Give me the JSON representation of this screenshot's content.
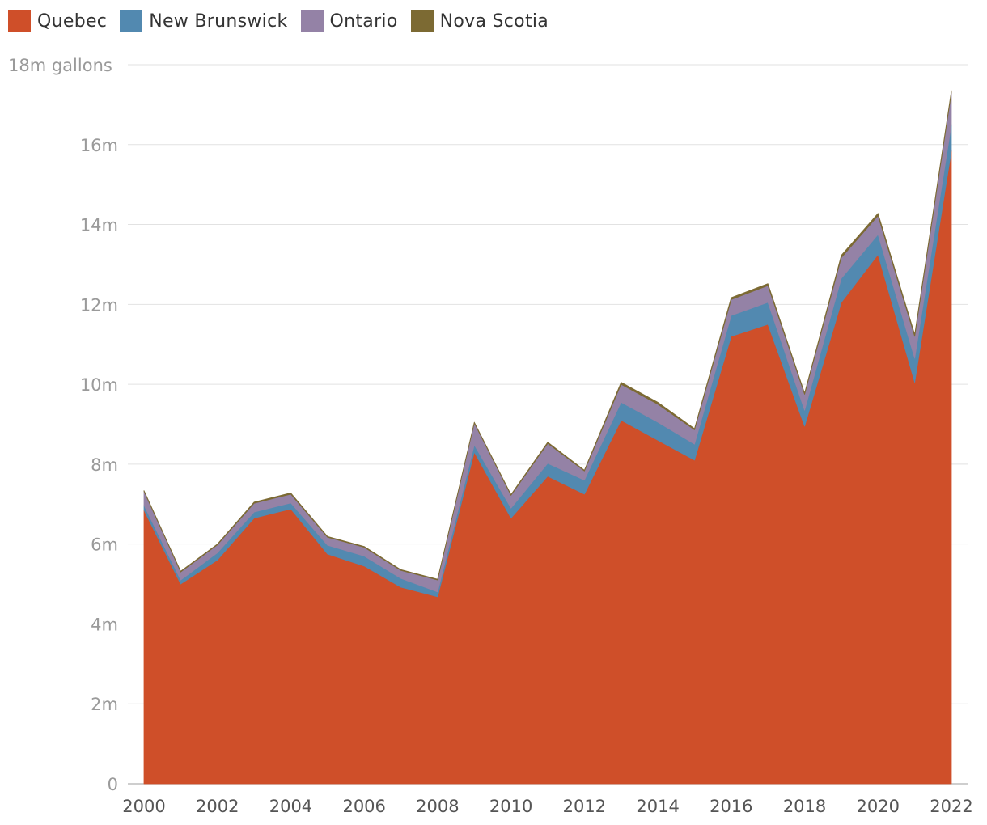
{
  "chart_data": {
    "type": "area",
    "stacked": true,
    "unit_label": "18m gallons",
    "x": [
      2000,
      2001,
      2002,
      2003,
      2004,
      2005,
      2006,
      2007,
      2008,
      2009,
      2010,
      2011,
      2012,
      2013,
      2014,
      2015,
      2016,
      2017,
      2018,
      2019,
      2020,
      2021,
      2022
    ],
    "series": [
      {
        "name": "Quebec",
        "color": "#cf4f29",
        "values": [
          6.85,
          5.0,
          5.6,
          6.65,
          6.88,
          5.75,
          5.45,
          4.92,
          4.68,
          8.3,
          6.65,
          7.7,
          7.25,
          9.1,
          8.6,
          8.1,
          11.2,
          11.5,
          8.95,
          12.05,
          13.25,
          10.05,
          15.85
        ]
      },
      {
        "name": "New Brunswick",
        "color": "#5289b0",
        "values": [
          0.12,
          0.1,
          0.18,
          0.15,
          0.15,
          0.22,
          0.25,
          0.22,
          0.12,
          0.18,
          0.25,
          0.32,
          0.35,
          0.45,
          0.45,
          0.4,
          0.52,
          0.55,
          0.4,
          0.6,
          0.5,
          0.6,
          0.65
        ]
      },
      {
        "name": "Ontario",
        "color": "#9482a6",
        "values": [
          0.35,
          0.2,
          0.2,
          0.22,
          0.22,
          0.2,
          0.22,
          0.2,
          0.3,
          0.55,
          0.32,
          0.5,
          0.23,
          0.45,
          0.45,
          0.36,
          0.4,
          0.42,
          0.4,
          0.52,
          0.47,
          0.55,
          0.8
        ]
      },
      {
        "name": "Nova Scotia",
        "color": "#7c6a33",
        "values": [
          0.02,
          0.02,
          0.02,
          0.03,
          0.03,
          0.02,
          0.02,
          0.02,
          0.02,
          0.02,
          0.02,
          0.03,
          0.02,
          0.05,
          0.05,
          0.03,
          0.05,
          0.05,
          0.03,
          0.06,
          0.06,
          0.05,
          0.05
        ]
      }
    ],
    "y_ticks": [
      0,
      2,
      4,
      6,
      8,
      10,
      12,
      14,
      16,
      18
    ],
    "y_tick_labels": [
      "0",
      "2m",
      "4m",
      "6m",
      "8m",
      "10m",
      "12m",
      "14m",
      "16m",
      "18m gallons"
    ],
    "x_ticks": [
      2000,
      2002,
      2004,
      2006,
      2008,
      2010,
      2012,
      2014,
      2016,
      2018,
      2020,
      2022
    ],
    "x_tick_labels": [
      "2000",
      "2002",
      "2004",
      "2006",
      "2008",
      "2010",
      "2012",
      "2014",
      "2016",
      "2018",
      "2020",
      "2022"
    ],
    "ylim": [
      0,
      18
    ],
    "xlim": [
      2000,
      2022
    ],
    "grid": true,
    "legend_position": "top-left"
  }
}
